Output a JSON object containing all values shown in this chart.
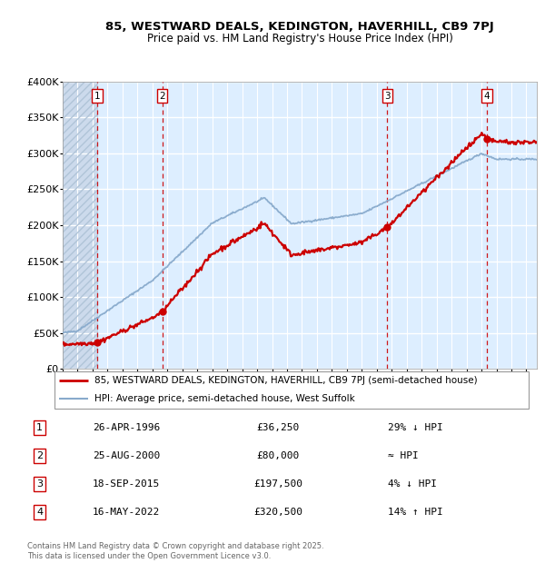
{
  "title_line1": "85, WESTWARD DEALS, KEDINGTON, HAVERHILL, CB9 7PJ",
  "title_line2": "Price paid vs. HM Land Registry's House Price Index (HPI)",
  "property_label": "85, WESTWARD DEALS, KEDINGTON, HAVERHILL, CB9 7PJ (semi-detached house)",
  "hpi_label": "HPI: Average price, semi-detached house, West Suffolk",
  "property_color": "#cc0000",
  "hpi_color": "#88aacc",
  "background_color": "#ddeeff",
  "dashed_line_color": "#cc0000",
  "ylim": [
    0,
    400000
  ],
  "yticks": [
    0,
    50000,
    100000,
    150000,
    200000,
    250000,
    300000,
    350000,
    400000
  ],
  "ytick_labels": [
    "£0",
    "£50K",
    "£100K",
    "£150K",
    "£200K",
    "£250K",
    "£300K",
    "£350K",
    "£400K"
  ],
  "sale_dates": [
    1996.32,
    2000.65,
    2015.71,
    2022.37
  ],
  "sale_prices": [
    36250,
    80000,
    197500,
    320500
  ],
  "sale_labels": [
    "1",
    "2",
    "3",
    "4"
  ],
  "transactions": [
    {
      "num": "1",
      "date": "26-APR-1996",
      "price": "£36,250",
      "rel": "29% ↓ HPI"
    },
    {
      "num": "2",
      "date": "25-AUG-2000",
      "price": "£80,000",
      "rel": "≈ HPI"
    },
    {
      "num": "3",
      "date": "18-SEP-2015",
      "price": "£197,500",
      "rel": "4% ↓ HPI"
    },
    {
      "num": "4",
      "date": "16-MAY-2022",
      "price": "£320,500",
      "rel": "14% ↑ HPI"
    }
  ],
  "footer": "Contains HM Land Registry data © Crown copyright and database right 2025.\nThis data is licensed under the Open Government Licence v3.0.",
  "xlim_start": 1994.0,
  "xlim_end": 2025.7
}
